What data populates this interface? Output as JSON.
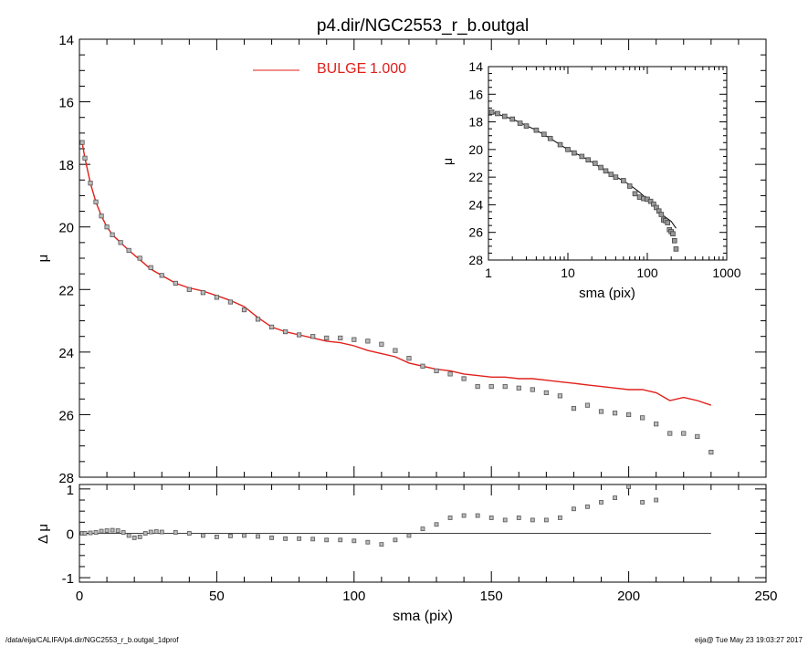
{
  "title": "p4.dir/NGC2553_r_b.outgal",
  "footer": {
    "left": "/data/eija/CALIFA/p4.dir/NGC2553_r_b.outgal_1dprof",
    "right": "eija@  Tue May 23 19:03:27 2017"
  },
  "colors": {
    "model": "#e0201b",
    "data": "#555555",
    "axes": "#000000"
  },
  "chart_data": [
    {
      "id": "main",
      "type": "scatter",
      "title": "p4.dir/NGC2553_r_b.outgal",
      "xlabel": "",
      "ylabel": "μ",
      "xlim": [
        0,
        250
      ],
      "ylim": [
        28,
        14
      ],
      "y_inverted": true,
      "xticks": [],
      "yticks": [
        "14",
        "16",
        "18",
        "20",
        "22",
        "24",
        "26",
        "28"
      ],
      "legend": {
        "position": "top-center",
        "entries": [
          {
            "label": "BULGE",
            "value": "1.000",
            "color": "#e0201b"
          }
        ]
      },
      "series": [
        {
          "name": "BULGE",
          "kind": "line",
          "x": [
            1,
            2,
            4,
            6,
            8,
            10,
            12,
            15,
            18,
            22,
            26,
            30,
            35,
            40,
            45,
            50,
            55,
            60,
            65,
            70,
            75,
            80,
            85,
            90,
            95,
            100,
            105,
            110,
            115,
            120,
            125,
            130,
            135,
            140,
            145,
            150,
            155,
            160,
            165,
            170,
            175,
            180,
            185,
            190,
            195,
            200,
            205,
            210,
            215,
            220,
            225,
            230
          ],
          "y": [
            17.3,
            17.8,
            18.6,
            19.2,
            19.65,
            20.0,
            20.25,
            20.5,
            20.75,
            21.05,
            21.35,
            21.55,
            21.8,
            21.95,
            22.05,
            22.2,
            22.35,
            22.55,
            22.9,
            23.2,
            23.35,
            23.45,
            23.55,
            23.65,
            23.7,
            23.8,
            23.95,
            24.05,
            24.15,
            24.35,
            24.45,
            24.55,
            24.6,
            24.7,
            24.75,
            24.8,
            24.8,
            24.85,
            24.85,
            24.9,
            24.95,
            25.0,
            25.05,
            25.1,
            25.15,
            25.2,
            25.2,
            25.3,
            25.55,
            25.45,
            25.55,
            25.7
          ]
        },
        {
          "name": "",
          "kind": "points",
          "x": [
            1,
            2,
            4,
            6,
            8,
            10,
            12,
            15,
            18,
            22,
            26,
            30,
            35,
            40,
            45,
            50,
            55,
            60,
            65,
            70,
            75,
            80,
            85,
            90,
            95,
            100,
            105,
            110,
            115,
            120,
            125,
            130,
            135,
            140,
            145,
            150,
            155,
            160,
            165,
            170,
            175,
            180,
            185,
            190,
            195,
            200,
            205,
            210,
            215,
            220,
            225,
            230
          ],
          "y": [
            17.3,
            17.8,
            18.6,
            19.2,
            19.65,
            20.0,
            20.25,
            20.5,
            20.75,
            21.0,
            21.3,
            21.55,
            21.8,
            22.0,
            22.1,
            22.25,
            22.4,
            22.65,
            22.95,
            23.2,
            23.35,
            23.45,
            23.5,
            23.55,
            23.55,
            23.6,
            23.65,
            23.75,
            23.95,
            24.2,
            24.45,
            24.6,
            24.7,
            24.85,
            25.1,
            25.1,
            25.1,
            25.15,
            25.2,
            25.3,
            25.4,
            25.8,
            25.7,
            25.9,
            25.95,
            26.0,
            26.1,
            26.3,
            26.6,
            26.6,
            26.7,
            27.2
          ]
        }
      ]
    },
    {
      "id": "residual",
      "type": "scatter",
      "xlabel": "sma (pix)",
      "ylabel": "Δ μ",
      "xlim": [
        0,
        250
      ],
      "ylim": [
        -1.1,
        1.1
      ],
      "xticks": [
        "0",
        "50",
        "100",
        "150",
        "200",
        "250"
      ],
      "yticks": [
        "1",
        "0",
        "-1"
      ],
      "series": [
        {
          "name": "",
          "kind": "points",
          "x": [
            1,
            2,
            4,
            6,
            8,
            10,
            12,
            14,
            16,
            18,
            20,
            22,
            24,
            26,
            28,
            30,
            35,
            40,
            45,
            50,
            55,
            60,
            65,
            70,
            75,
            80,
            85,
            90,
            95,
            100,
            105,
            110,
            115,
            120,
            125,
            130,
            135,
            140,
            145,
            150,
            155,
            160,
            165,
            170,
            175,
            180,
            185,
            190,
            195,
            200,
            205,
            210
          ],
          "y": [
            0.0,
            0.0,
            0.01,
            0.02,
            0.05,
            0.06,
            0.07,
            0.06,
            0.02,
            -0.05,
            -0.1,
            -0.08,
            0.0,
            0.03,
            0.04,
            0.03,
            0.02,
            0.0,
            -0.05,
            -0.08,
            -0.06,
            -0.05,
            -0.07,
            -0.1,
            -0.12,
            -0.12,
            -0.13,
            -0.15,
            -0.15,
            -0.17,
            -0.2,
            -0.25,
            -0.15,
            -0.05,
            0.1,
            0.2,
            0.35,
            0.4,
            0.4,
            0.35,
            0.3,
            0.35,
            0.3,
            0.3,
            0.35,
            0.55,
            0.6,
            0.7,
            0.8,
            1.05,
            0.7,
            0.75
          ]
        },
        {
          "name": "",
          "kind": "hline",
          "x": [
            0,
            230
          ],
          "y": [
            0,
            0
          ]
        }
      ]
    },
    {
      "id": "inset",
      "type": "scatter",
      "xlabel": "sma (pix)",
      "ylabel": "μ",
      "xscale": "log",
      "xlim": [
        1,
        1000
      ],
      "ylim": [
        28,
        14
      ],
      "y_inverted": true,
      "xticks": [
        "1",
        "10",
        "100",
        "1000"
      ],
      "yticks": [
        "14",
        "16",
        "18",
        "20",
        "22",
        "24",
        "26",
        "28"
      ],
      "series": [
        {
          "name": "",
          "kind": "line",
          "x": [
            1.1,
            2,
            4,
            6,
            10,
            15,
            20,
            30,
            40,
            60,
            80,
            100,
            130,
            160,
            200,
            230
          ],
          "y": [
            17.3,
            17.8,
            18.6,
            19.2,
            20.0,
            20.5,
            20.9,
            21.55,
            21.95,
            22.55,
            23.1,
            23.6,
            24.2,
            24.8,
            25.2,
            25.7
          ]
        },
        {
          "name": "",
          "kind": "points",
          "x": [
            1.1,
            1.3,
            1.6,
            2,
            2.5,
            3,
            4,
            5,
            6,
            8,
            10,
            12,
            15,
            18,
            22,
            26,
            30,
            35,
            40,
            50,
            60,
            70,
            80,
            90,
            100,
            110,
            120,
            130,
            140,
            150,
            160,
            170,
            180,
            190,
            200,
            210,
            220,
            230
          ],
          "y": [
            17.3,
            17.4,
            17.6,
            17.8,
            18.1,
            18.3,
            18.6,
            18.9,
            19.2,
            19.65,
            20.0,
            20.25,
            20.5,
            20.75,
            21.0,
            21.3,
            21.55,
            21.8,
            22.0,
            22.25,
            22.65,
            23.2,
            23.45,
            23.55,
            23.6,
            23.75,
            23.95,
            24.2,
            24.45,
            24.7,
            25.1,
            25.15,
            25.3,
            25.8,
            25.95,
            26.1,
            26.6,
            27.2
          ]
        }
      ]
    }
  ]
}
